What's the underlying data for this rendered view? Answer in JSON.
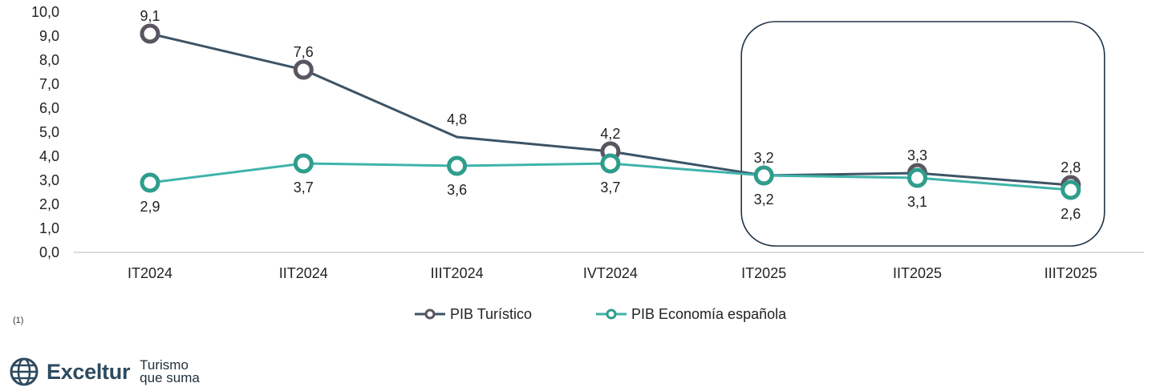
{
  "chart_data": {
    "type": "line",
    "categories": [
      "IT2024",
      "IIT2024",
      "IIIT2024",
      "IVT2024",
      "IT2025",
      "IIT2025",
      "IIIT2025"
    ],
    "series": [
      {
        "name": "PIB Turístico",
        "color": "#3d5466",
        "marker_ring": "#5a5560",
        "values": [
          9.1,
          7.6,
          4.8,
          4.2,
          3.2,
          3.3,
          2.8
        ],
        "labels": [
          "9,1",
          "7,6",
          "4,8",
          "4,2",
          "3,2",
          "3,3",
          "2,8"
        ],
        "markers": [
          true,
          true,
          false,
          true,
          false,
          true,
          true
        ]
      },
      {
        "name": "PIB Economía española",
        "color": "#3fb3aa",
        "marker_ring": "#2f9d8c",
        "values": [
          2.9,
          3.7,
          3.6,
          3.7,
          3.2,
          3.1,
          2.6
        ],
        "labels": [
          "2,9",
          "3,7",
          "3,6",
          "3,7",
          "3,2",
          "3,1",
          "2,6"
        ],
        "markers": [
          true,
          true,
          true,
          true,
          true,
          true,
          true
        ]
      }
    ],
    "ylim": [
      0,
      10
    ],
    "yticks": [
      "0,0",
      "1,0",
      "2,0",
      "3,0",
      "4,0",
      "5,0",
      "6,0",
      "7,0",
      "8,0",
      "9,0",
      "10,0"
    ],
    "highlight": [
      "IT2025",
      "IIIT2025"
    ],
    "legend_position": "bottom"
  },
  "footnote": "(1)",
  "brand": {
    "name": "Exceltur",
    "tagline_line1": "Turismo",
    "tagline_line2": "que suma"
  }
}
